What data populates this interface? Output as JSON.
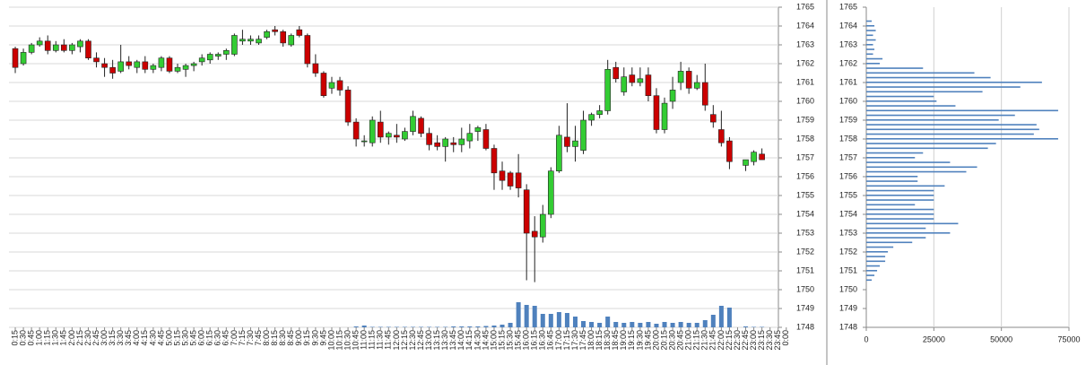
{
  "chart_data": [
    {
      "type": "candlestick",
      "categories": [
        "0:15",
        "0:30",
        "0:45",
        "1:00",
        "1:15",
        "1:30",
        "1:45",
        "2:00",
        "2:15",
        "2:30",
        "2:45",
        "3:00",
        "3:15",
        "3:30",
        "3:45",
        "4:00",
        "4:15",
        "4:30",
        "4:45",
        "5:00",
        "5:15",
        "5:30",
        "5:45",
        "6:00",
        "6:15",
        "6:30",
        "6:45",
        "7:00",
        "7:15",
        "7:30",
        "7:45",
        "8:00",
        "8:15",
        "8:30",
        "8:45",
        "9:00",
        "9:15",
        "9:30",
        "9:45",
        "10:00",
        "10:15",
        "10:30",
        "10:45",
        "11:00",
        "11:15",
        "11:30",
        "11:45",
        "12:00",
        "12:15",
        "12:30",
        "12:45",
        "13:00",
        "13:15",
        "13:30",
        "13:45",
        "14:00",
        "14:15",
        "14:30",
        "14:45",
        "15:00",
        "15:15",
        "15:30",
        "15:45",
        "16:00",
        "16:15",
        "16:30",
        "16:45",
        "17:00",
        "17:15",
        "17:30",
        "17:45",
        "18:00",
        "18:15",
        "18:30",
        "18:45",
        "19:00",
        "19:15",
        "19:30",
        "19:45",
        "20:00",
        "20:15",
        "20:30",
        "20:45",
        "21:00",
        "21:15",
        "21:30",
        "21:45",
        "22:00",
        "22:15",
        "22:30",
        "22:45",
        "23:00",
        "23:15",
        "23:30",
        "23:45",
        "0:00"
      ],
      "open": [
        1762.8,
        1762.0,
        1762.6,
        1763.0,
        1763.2,
        1762.7,
        1763.0,
        1762.7,
        1762.9,
        1763.2,
        1762.3,
        1762.0,
        1761.8,
        1761.6,
        1762.1,
        1761.8,
        1762.1,
        1761.7,
        1761.8,
        1762.3,
        1761.6,
        1761.7,
        1761.9,
        1762.1,
        1762.2,
        1762.4,
        1762.5,
        1762.5,
        1763.2,
        1763.2,
        1763.1,
        1763.4,
        1763.8,
        1763.7,
        1763.0,
        1763.8,
        1763.5,
        1762.0,
        1761.5,
        1760.7,
        1761.1,
        1760.6,
        1758.9,
        1757.9,
        1757.8,
        1758.9,
        1758.1,
        1758.2,
        1758.0,
        1758.4,
        1759.1,
        1758.3,
        1757.8,
        1757.6,
        1757.8,
        1757.7,
        1757.9,
        1758.4,
        1758.5,
        1757.5,
        1756.3,
        1756.2,
        1756.2,
        1755.3,
        1753.1,
        1752.8,
        1754.0,
        1756.3,
        1758.1,
        1757.6,
        1757.4,
        1759.0,
        1759.3,
        1759.5,
        1761.8,
        1760.5,
        1761.4,
        1761.0,
        1761.4,
        1760.3,
        1758.5,
        1760.0,
        1761.0,
        1761.6,
        1760.7,
        1761.0,
        1759.3,
        1758.5,
        1757.9,
        null,
        1756.6,
        1756.8,
        1757.2,
        null,
        null,
        null
      ],
      "high": [
        1762.9,
        1762.8,
        1763.1,
        1763.4,
        1763.5,
        1763.2,
        1763.3,
        1763.1,
        1763.3,
        1763.3,
        1762.6,
        1762.3,
        1762.2,
        1763.0,
        1762.4,
        1762.2,
        1762.4,
        1762.0,
        1762.4,
        1762.4,
        1762.0,
        1762.0,
        1762.1,
        1762.5,
        1762.6,
        1762.6,
        1762.8,
        1763.6,
        1763.8,
        1763.5,
        1763.5,
        1763.8,
        1764.0,
        1763.8,
        1763.6,
        1764.0,
        1763.6,
        1762.5,
        1761.6,
        1761.3,
        1761.3,
        1760.8,
        1759.1,
        1758.2,
        1759.2,
        1759.5,
        1758.4,
        1758.8,
        1758.6,
        1759.5,
        1759.2,
        1758.6,
        1758.2,
        1758.1,
        1758.1,
        1758.6,
        1758.8,
        1758.7,
        1758.8,
        1757.7,
        1756.8,
        1756.3,
        1757.2,
        1755.6,
        1753.9,
        1754.5,
        1756.5,
        1758.7,
        1759.9,
        1758.7,
        1759.5,
        1759.4,
        1759.8,
        1762.2,
        1762.1,
        1761.8,
        1761.8,
        1761.8,
        1761.8,
        1760.7,
        1760.2,
        1761.3,
        1762.1,
        1761.8,
        1761.4,
        1762.0,
        1759.8,
        1759.5,
        1758.1,
        null,
        1756.9,
        1757.4,
        1757.5,
        null,
        null,
        null
      ],
      "low": [
        1761.5,
        1761.9,
        1762.5,
        1762.9,
        1762.5,
        1762.6,
        1762.6,
        1762.5,
        1762.6,
        1762.2,
        1761.8,
        1761.3,
        1761.2,
        1761.5,
        1761.7,
        1761.5,
        1761.5,
        1761.5,
        1761.6,
        1761.5,
        1761.5,
        1761.3,
        1761.6,
        1761.9,
        1762.0,
        1762.2,
        1762.2,
        1762.4,
        1763.0,
        1763.0,
        1763.0,
        1763.3,
        1763.5,
        1762.9,
        1762.9,
        1763.4,
        1761.8,
        1761.3,
        1760.2,
        1760.4,
        1760.3,
        1758.7,
        1757.6,
        1757.6,
        1757.6,
        1757.8,
        1757.7,
        1757.8,
        1757.9,
        1758.2,
        1758.1,
        1757.4,
        1757.4,
        1756.8,
        1757.3,
        1757.3,
        1757.5,
        1757.9,
        1757.4,
        1755.3,
        1755.3,
        1755.3,
        1754.9,
        1750.5,
        1750.4,
        1752.5,
        1753.8,
        1756.2,
        1757.3,
        1756.8,
        1757.2,
        1758.7,
        1759.1,
        1759.3,
        1761.0,
        1760.3,
        1760.8,
        1760.8,
        1760.0,
        1758.3,
        1758.3,
        1759.6,
        1760.6,
        1760.4,
        1760.6,
        1759.5,
        1758.6,
        1757.6,
        1756.4,
        null,
        1756.3,
        1756.6,
        1756.9,
        null,
        null,
        null
      ],
      "close": [
        1761.8,
        1762.6,
        1763.0,
        1763.2,
        1762.7,
        1763.0,
        1762.7,
        1763.0,
        1763.2,
        1762.3,
        1762.1,
        1761.8,
        1761.5,
        1762.1,
        1761.9,
        1762.1,
        1761.7,
        1761.9,
        1762.3,
        1761.6,
        1761.8,
        1761.9,
        1762.0,
        1762.3,
        1762.5,
        1762.5,
        1762.7,
        1763.5,
        1763.3,
        1763.3,
        1763.3,
        1763.7,
        1763.7,
        1763.1,
        1763.5,
        1763.5,
        1762.0,
        1761.5,
        1760.3,
        1761.0,
        1760.6,
        1758.9,
        1758.0,
        1757.9,
        1759.0,
        1758.1,
        1758.3,
        1758.1,
        1758.4,
        1759.2,
        1758.3,
        1757.7,
        1757.6,
        1758.0,
        1757.7,
        1758.0,
        1758.3,
        1758.6,
        1757.5,
        1756.2,
        1755.8,
        1755.5,
        1755.4,
        1753.0,
        1752.8,
        1754.0,
        1756.3,
        1758.2,
        1757.6,
        1757.9,
        1759.0,
        1759.3,
        1759.5,
        1761.7,
        1761.2,
        1761.3,
        1761.0,
        1761.2,
        1760.3,
        1758.5,
        1759.9,
        1760.6,
        1761.6,
        1760.7,
        1761.0,
        1759.8,
        1758.9,
        1757.8,
        1756.8,
        null,
        1756.9,
        1757.3,
        1756.9,
        null,
        null,
        null
      ],
      "volume": [
        0,
        0,
        0,
        0,
        0,
        0,
        0,
        0,
        0,
        0,
        0,
        0,
        0,
        0,
        0,
        0,
        0,
        0,
        0,
        0,
        0,
        0,
        0,
        0,
        0,
        0,
        0,
        0,
        0,
        0,
        0,
        0,
        0,
        0,
        0,
        0,
        0,
        0,
        0,
        0,
        0,
        0,
        1,
        2,
        0.5,
        0.5,
        0.5,
        0.5,
        0.5,
        0.5,
        0.5,
        0.5,
        0.5,
        0.5,
        1,
        1,
        1,
        1,
        1.5,
        2,
        3,
        5,
        28,
        25,
        24,
        15,
        15,
        17,
        16,
        12,
        7,
        6,
        5,
        12,
        6,
        5,
        6,
        5,
        6,
        4,
        6,
        5,
        6,
        5,
        5,
        8,
        14,
        24,
        22,
        null,
        1,
        0.5,
        0.5,
        null,
        null,
        null
      ],
      "volume_lim": [
        0,
        100
      ],
      "up_color": "#33cc33",
      "down_color": "#cc0000",
      "volume_color": "#4f81bd",
      "ylim": [
        1748,
        1765
      ],
      "yticks": [
        1748,
        1749,
        1750,
        1751,
        1752,
        1753,
        1754,
        1755,
        1756,
        1757,
        1758,
        1759,
        1760,
        1761,
        1762,
        1763,
        1764,
        1765
      ],
      "grid": true
    },
    {
      "type": "barh",
      "y": [
        1764.25,
        1764.0,
        1763.75,
        1763.5,
        1763.25,
        1763.0,
        1762.75,
        1762.5,
        1762.25,
        1762.0,
        1761.75,
        1761.5,
        1761.25,
        1761.0,
        1760.75,
        1760.5,
        1760.25,
        1760.0,
        1759.75,
        1759.5,
        1759.25,
        1759.0,
        1758.75,
        1758.5,
        1758.25,
        1758.0,
        1757.75,
        1757.5,
        1757.25,
        1757.0,
        1756.75,
        1756.5,
        1756.25,
        1756.0,
        1755.75,
        1755.5,
        1755.25,
        1755.0,
        1754.75,
        1754.5,
        1754.25,
        1754.0,
        1753.75,
        1753.5,
        1753.25,
        1753.0,
        1752.75,
        1752.5,
        1752.25,
        1752.0,
        1751.75,
        1751.5,
        1751.25,
        1751.0,
        1750.75,
        1750.5
      ],
      "values": [
        2000,
        3000,
        3500,
        2500,
        3500,
        2500,
        3000,
        2500,
        6000,
        5000,
        21000,
        40000,
        46000,
        65000,
        57000,
        43000,
        25000,
        26000,
        33000,
        71000,
        55000,
        49000,
        63000,
        64000,
        62000,
        71000,
        48000,
        45000,
        21000,
        18000,
        31000,
        41000,
        37000,
        19000,
        19000,
        29000,
        25000,
        25000,
        25000,
        18000,
        25000,
        25000,
        25000,
        34000,
        22000,
        31000,
        22000,
        17000,
        10000,
        8000,
        7000,
        7000,
        5000,
        4000,
        3000,
        2000
      ],
      "color": "#4f81bd",
      "xlim": [
        0,
        75000
      ],
      "xticks": [
        0,
        25000,
        50000,
        75000
      ],
      "ylim": [
        1748,
        1765
      ],
      "yticks": [
        1748,
        1749,
        1750,
        1751,
        1752,
        1753,
        1754,
        1755,
        1756,
        1757,
        1758,
        1759,
        1760,
        1761,
        1762,
        1763,
        1764,
        1765
      ],
      "grid": true
    }
  ]
}
